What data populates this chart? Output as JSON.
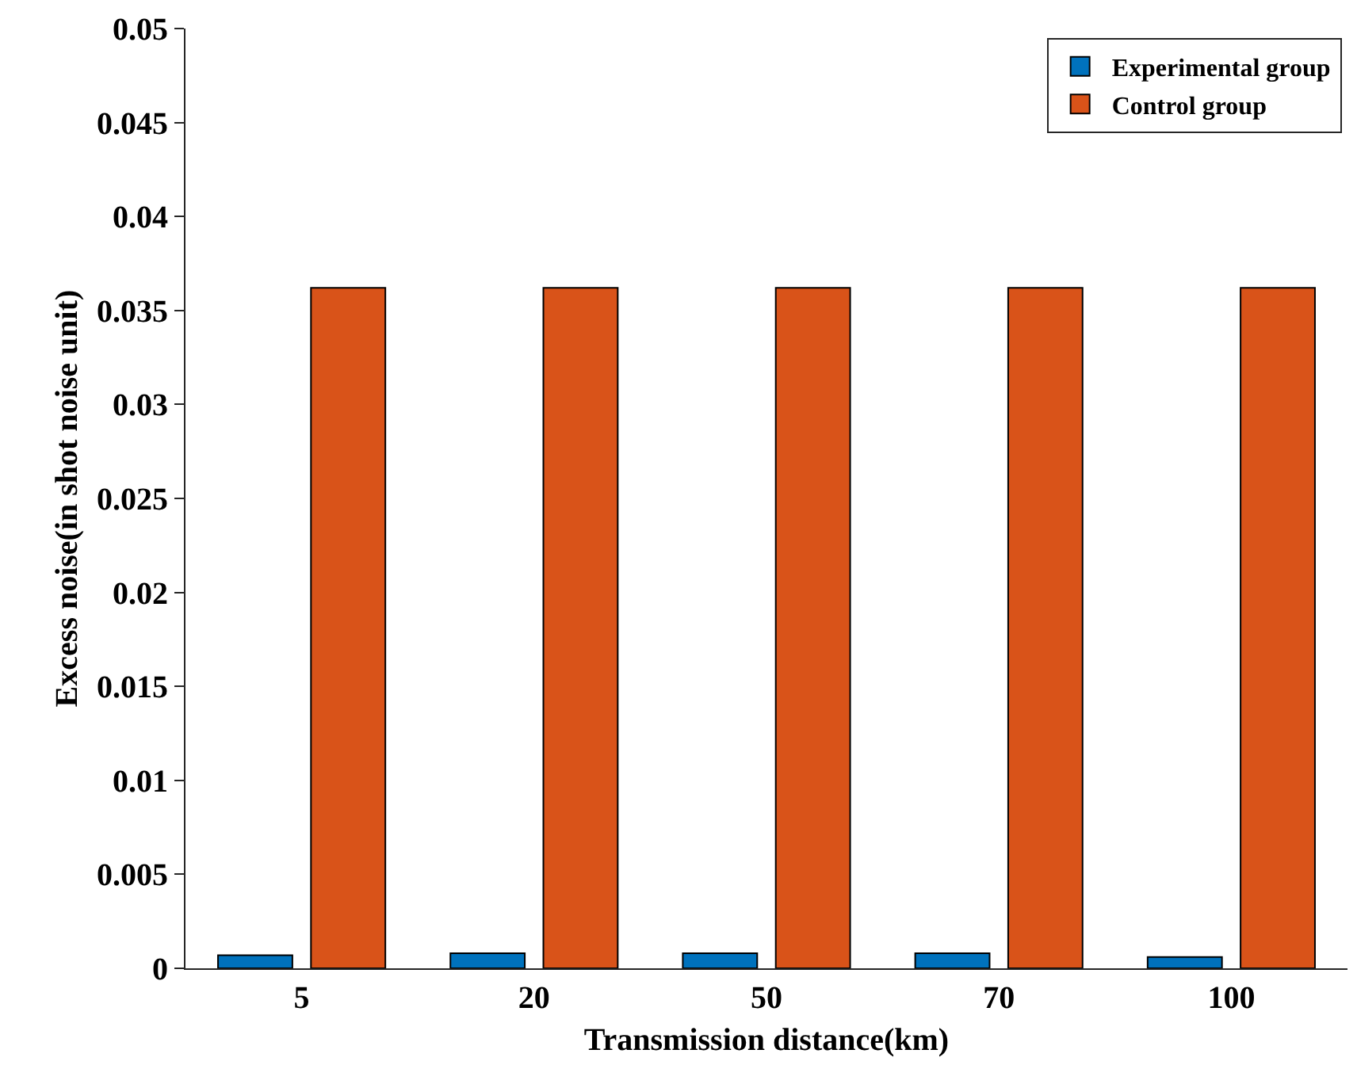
{
  "chart_data": {
    "type": "bar",
    "xlabel": "Transmission distance(km)",
    "ylabel": "Excess noise(in shot noise unit)",
    "categories": [
      "5",
      "20",
      "50",
      "70",
      "100"
    ],
    "series": [
      {
        "name": "Experimental group",
        "color": "#0072bd",
        "values": [
          0.0007,
          0.0008,
          0.0008,
          0.0008,
          0.0006
        ]
      },
      {
        "name": "Control group",
        "color": "#d95319",
        "values": [
          0.0362,
          0.0362,
          0.0362,
          0.0362,
          0.0362
        ]
      }
    ],
    "ylim": [
      0,
      0.05
    ],
    "yticks": [
      0,
      0.005,
      0.01,
      0.015,
      0.02,
      0.025,
      0.03,
      0.035,
      0.04,
      0.045,
      0.05
    ],
    "legend": "top right"
  }
}
